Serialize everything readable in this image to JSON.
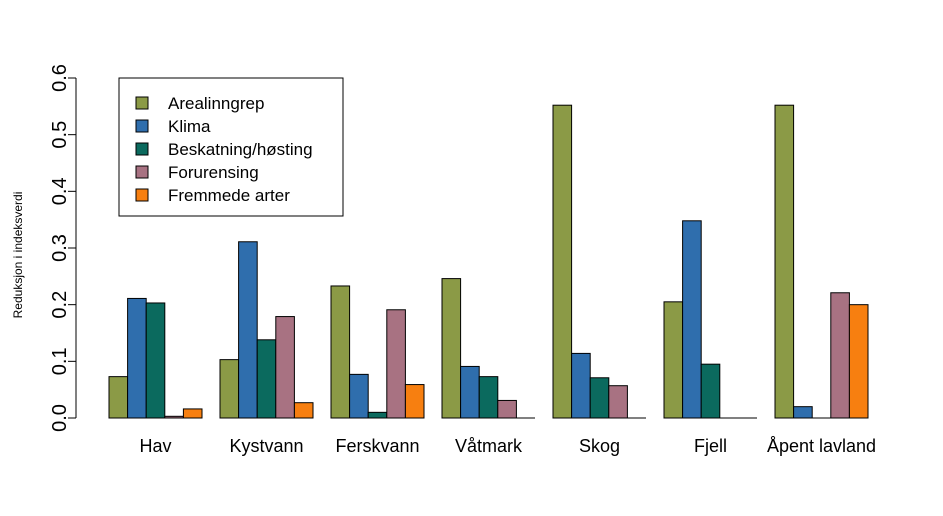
{
  "chart_data": {
    "type": "bar",
    "title": "",
    "xlabel": "",
    "ylabel": "Reduksjon i indeksverdi",
    "ylim": [
      0,
      0.6
    ],
    "yticks": [
      "0.0",
      "0.1",
      "0.2",
      "0.3",
      "0.4",
      "0.5",
      "0.6"
    ],
    "grid": false,
    "legend_position": "top-left",
    "categories": [
      "Hav",
      "Kystvann",
      "Ferskvann",
      "Våtmark",
      "Skog",
      "Fjell",
      "Åpent lavland"
    ],
    "series": [
      {
        "name": "Arealinngrep",
        "color": "#8b9a46",
        "values": [
          0.073,
          0.103,
          0.233,
          0.246,
          0.552,
          0.205,
          0.552
        ]
      },
      {
        "name": "Klima",
        "color": "#2f6ead",
        "values": [
          0.211,
          0.311,
          0.077,
          0.091,
          0.114,
          0.348,
          0.02
        ]
      },
      {
        "name": "Beskatning/høsting",
        "color": "#0b6a5e",
        "values": [
          0.203,
          0.138,
          0.01,
          0.073,
          0.071,
          0.095,
          null
        ]
      },
      {
        "name": "Forurensing",
        "color": "#a87282",
        "values": [
          0.003,
          0.179,
          0.191,
          0.031,
          0.057,
          null,
          0.221
        ]
      },
      {
        "name": "Fremmede arter",
        "color": "#f77f10",
        "values": [
          0.016,
          0.027,
          0.059,
          null,
          null,
          null,
          0.2
        ]
      }
    ]
  }
}
